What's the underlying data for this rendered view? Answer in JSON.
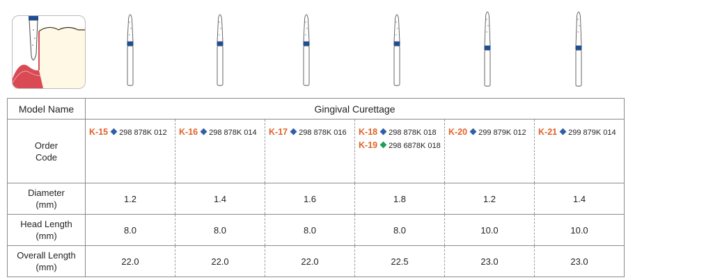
{
  "colors": {
    "code": "#e0622a",
    "blue_diamond": "#2f5fa8",
    "green_diamond": "#1f9e5a",
    "band": "#1f4e96",
    "gum": "#d94a55"
  },
  "illustration": {
    "icon": "gingival-curettage-diagram-icon"
  },
  "table": {
    "model_label": "Model Name",
    "model_value": "Gingival Curettage",
    "order_label_line1": "Order",
    "order_label_line2": "Code",
    "diameter_line1": "Diameter",
    "diameter_line2": "(mm)",
    "head_line1": "Head Length",
    "head_line2": "(mm)",
    "overall_line1": "Overall Length",
    "overall_line2": "(mm)",
    "columns": [
      {
        "codes": [
          {
            "code": "K-15",
            "number": "298 878K 012",
            "diamond": "blue"
          }
        ],
        "diameter": "1.2",
        "head": "8.0",
        "overall": "22.0"
      },
      {
        "codes": [
          {
            "code": "K-16",
            "number": "298 878K 014",
            "diamond": "blue"
          }
        ],
        "diameter": "1.4",
        "head": "8.0",
        "overall": "22.0"
      },
      {
        "codes": [
          {
            "code": "K-17",
            "number": "298 878K 016",
            "diamond": "blue"
          }
        ],
        "diameter": "1.6",
        "head": "8.0",
        "overall": "22.0"
      },
      {
        "codes": [
          {
            "code": "K-18",
            "number": "298 878K 018",
            "diamond": "blue"
          },
          {
            "code": "K-19",
            "number": "298 6878K 018",
            "diamond": "green"
          }
        ],
        "diameter": "1.8",
        "head": "8.0",
        "overall": "22.5"
      },
      {
        "codes": [
          {
            "code": "K-20",
            "number": "299 879K 012",
            "diamond": "blue"
          }
        ],
        "diameter": "1.2",
        "head": "10.0",
        "overall": "23.0"
      },
      {
        "codes": [
          {
            "code": "K-21",
            "number": "299 879K 014",
            "diamond": "blue"
          }
        ],
        "diameter": "1.4",
        "head": "10.0",
        "overall": "23.0"
      }
    ]
  }
}
